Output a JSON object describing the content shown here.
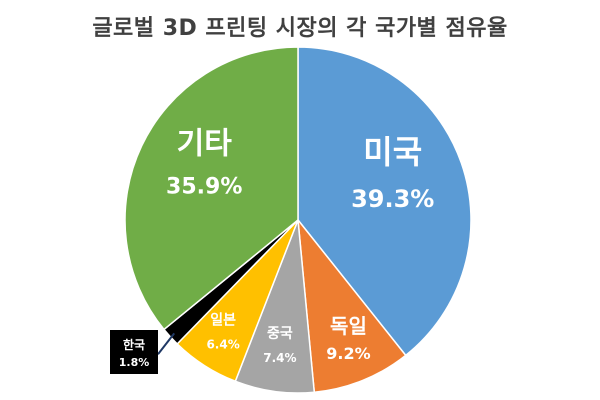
{
  "chart_data": {
    "type": "pie",
    "title": "글로벌 3D 프린팅 시장의 각 국가별 점유율",
    "slices": [
      {
        "name": "미국",
        "value": 39.3,
        "label": "39.3%",
        "color": "#5b9bd5"
      },
      {
        "name": "독일",
        "value": 9.2,
        "label": "9.2%",
        "color": "#ed7d31"
      },
      {
        "name": "중국",
        "value": 7.4,
        "label": "7.4%",
        "color": "#a5a5a5"
      },
      {
        "name": "일본",
        "value": 6.4,
        "label": "6.4%",
        "color": "#ffc000"
      },
      {
        "name": "한국",
        "value": 1.8,
        "label": "1.8%",
        "color": "#000000"
      },
      {
        "name": "기타",
        "value": 35.9,
        "label": "35.9%",
        "color": "#70ad47"
      }
    ],
    "start_angle_deg": 0,
    "direction": "clockwise",
    "legend": "none"
  }
}
